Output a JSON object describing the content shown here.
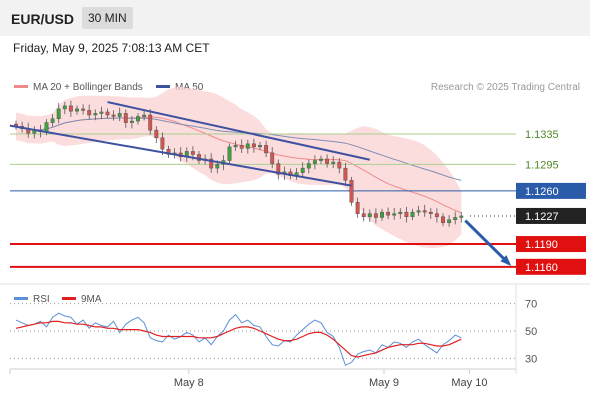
{
  "header": {
    "symbol": "EUR/USD",
    "timeframe": "30 MIN",
    "datetime": "Friday, May 9, 2025 7:08:13 AM CET"
  },
  "colors": {
    "bull": "#3ca33c",
    "bear": "#d9534f",
    "candle_outline": "#555555",
    "bollinger_fill": "#fbd1d1",
    "ma20": "#f08a8a",
    "ma50": "#7f8fb5",
    "trendline": "#3e51a1",
    "support": "#e01010",
    "level_green": "#a8d08d",
    "level_blue": "#2a5caa",
    "current": "#222222",
    "rsi": "#5b8fd6",
    "rsi_ma": "#e02020",
    "arrow": "#2a5caa"
  },
  "chart_data": {
    "type": "candlestick",
    "legend": {
      "ma20_label": "MA 20 + Bollinger Bands",
      "ma50_label": "MA 50",
      "research": "Research © 2025 Trading Central"
    },
    "price_levels": [
      {
        "value": 1.1335,
        "label": "1.1335",
        "kind": "resistance"
      },
      {
        "value": 1.1295,
        "label": "1.1295",
        "kind": "resistance"
      },
      {
        "value": 1.126,
        "label": "1.1260",
        "kind": "pivot"
      },
      {
        "value": 1.1227,
        "label": "1.1227",
        "kind": "current"
      },
      {
        "value": 1.119,
        "label": "1.1190",
        "kind": "support"
      },
      {
        "value": 1.116,
        "label": "1.1160",
        "kind": "support"
      }
    ],
    "x_ticks": [
      {
        "label": "May 8",
        "index": 28
      },
      {
        "label": "May 9",
        "index": 60
      },
      {
        "label": "May 10",
        "index": 74
      }
    ],
    "candles_close": [
      1.1345,
      1.1342,
      1.1336,
      1.134,
      1.1338,
      1.135,
      1.1355,
      1.1368,
      1.1372,
      1.1365,
      1.1368,
      1.1366,
      1.136,
      1.1362,
      1.1364,
      1.136,
      1.1358,
      1.1362,
      1.135,
      1.1352,
      1.1358,
      1.136,
      1.134,
      1.133,
      1.1315,
      1.1308,
      1.131,
      1.1305,
      1.1312,
      1.1308,
      1.13,
      1.1302,
      1.129,
      1.1295,
      1.13,
      1.1318,
      1.132,
      1.1316,
      1.1322,
      1.1318,
      1.132,
      1.131,
      1.1296,
      1.1282,
      1.1285,
      1.128,
      1.1284,
      1.129,
      1.1296,
      1.13,
      1.1302,
      1.1296,
      1.1298,
      1.129,
      1.1274,
      1.1245,
      1.123,
      1.1226,
      1.123,
      1.1225,
      1.1232,
      1.1228,
      1.123,
      1.1232,
      1.1226,
      1.1232,
      1.1234,
      1.1232,
      1.123,
      1.1226,
      1.1218,
      1.1222,
      1.1225,
      1.1227
    ],
    "rsi_panel": {
      "legend": {
        "rsi_label": "RSI",
        "ma_label": "9MA"
      },
      "levels": [
        70,
        50,
        30
      ],
      "level_labels": [
        "70",
        "50",
        "30"
      ],
      "ylim": [
        20,
        80
      ],
      "rsi": [
        58,
        56,
        54,
        55,
        57,
        53,
        60,
        63,
        61,
        60,
        55,
        58,
        52,
        56,
        54,
        53,
        57,
        49,
        55,
        58,
        60,
        56,
        45,
        43,
        42,
        47,
        44,
        46,
        49,
        47,
        42,
        45,
        40,
        46,
        50,
        58,
        62,
        56,
        58,
        54,
        53,
        46,
        40,
        39,
        43,
        42,
        47,
        51,
        55,
        58,
        56,
        49,
        46,
        38,
        25,
        27,
        33,
        35,
        36,
        34,
        40,
        38,
        42,
        41,
        38,
        42,
        44,
        40,
        37,
        34,
        40,
        43,
        47,
        45
      ],
      "rsi_ma": [
        52,
        53,
        54,
        55,
        56,
        56,
        57,
        57,
        56,
        56,
        55,
        55,
        54,
        53,
        53,
        52,
        52,
        51,
        51,
        51,
        51,
        50,
        49,
        47,
        46,
        46,
        46,
        46,
        46,
        46,
        45,
        45,
        45,
        46,
        48,
        50,
        52,
        53,
        53,
        52,
        50,
        48,
        46,
        44,
        43,
        43,
        44,
        46,
        48,
        49,
        49,
        47,
        44,
        40,
        36,
        32,
        31,
        32,
        33,
        34,
        36,
        38,
        39,
        40,
        40,
        40,
        41,
        41,
        40,
        39,
        39,
        40,
        42,
        44
      ]
    },
    "ylim": [
      1.114,
      1.1385
    ]
  }
}
